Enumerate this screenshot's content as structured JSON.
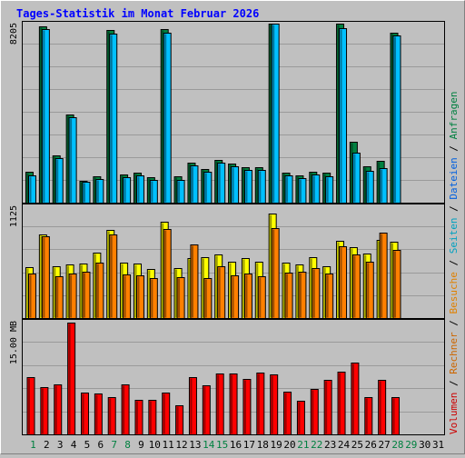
{
  "chart_data": {
    "type": "bar",
    "title": "Tages-Statistik im Monat Februar 2026",
    "categories": [
      "1",
      "2",
      "3",
      "4",
      "5",
      "6",
      "7",
      "8",
      "9",
      "10",
      "11",
      "12",
      "13",
      "14",
      "15",
      "16",
      "17",
      "18",
      "19",
      "20",
      "21",
      "22",
      "23",
      "24",
      "25",
      "26",
      "27",
      "28",
      "29",
      "30",
      "31"
    ],
    "weekend_days": [
      "1",
      "7",
      "8",
      "14",
      "15",
      "21",
      "22",
      "28",
      "29"
    ],
    "disabled_days": [
      "29",
      "30",
      "31"
    ],
    "panels": [
      {
        "id": "requests",
        "scale_label": "8205",
        "ylim": [
          0,
          8205
        ],
        "series": [
          {
            "name": "Anfragen",
            "color": "#008040",
            "values": [
              1410,
              8100,
              2180,
              4050,
              1020,
              1220,
              7900,
              1310,
              1360,
              1150,
              7950,
              1190,
              1830,
              1540,
              1960,
              1800,
              1640,
              1640,
              8400,
              1380,
              1260,
              1420,
              1360,
              8200,
              2780,
              1650,
              1900,
              7800,
              0,
              0,
              0
            ]
          },
          {
            "name": "Dateien",
            "color": "#00c0ff",
            "values": [
              1270,
              7960,
              2050,
              3900,
              940,
              1100,
              7750,
              1180,
              1230,
              1030,
              7800,
              1060,
              1690,
              1400,
              1820,
              1660,
              1510,
              1500,
              8220,
              1250,
              1140,
              1290,
              1210,
              8000,
              2300,
              1470,
              1570,
              7660,
              0,
              0,
              0
            ]
          }
        ]
      },
      {
        "id": "visits",
        "scale_label": "1125",
        "ylim": [
          0,
          1125
        ],
        "series": [
          {
            "name": "Seiten",
            "color": "#ffff00",
            "values": [
              510,
              840,
              520,
              540,
              550,
              660,
              890,
              560,
              550,
              490,
              970,
              500,
              600,
              610,
              640,
              570,
              600,
              570,
              1050,
              560,
              540,
              610,
              520,
              780,
              710,
              650,
              790,
              770,
              0,
              0,
              0
            ]
          },
          {
            "name": "Besuche",
            "color": "#ff8000",
            "values": [
              450,
              820,
              420,
              450,
              470,
              560,
              840,
              440,
              430,
              400,
              900,
              410,
              740,
              400,
              520,
              430,
              450,
              420,
              910,
              460,
              470,
              500,
              450,
              720,
              640,
              570,
              860,
              690,
              0,
              0,
              0
            ]
          }
        ]
      },
      {
        "id": "volume",
        "scale_label": "15.00 MB",
        "ylim": [
          0,
          15.0
        ],
        "series": [
          {
            "name": "Volumen",
            "color": "#ff0000",
            "values": [
              7.6,
              6.3,
              6.7,
              14.9,
              5.6,
              5.4,
              4.9,
              6.6,
              4.6,
              4.6,
              5.6,
              3.9,
              7.6,
              6.5,
              8.1,
              8.1,
              7.4,
              8.2,
              8.0,
              5.7,
              4.5,
              6.1,
              7.3,
              8.4,
              9.5,
              5.0,
              7.3,
              5.0,
              0,
              0,
              0
            ]
          }
        ]
      }
    ],
    "right_label": {
      "parts": [
        {
          "text": "Volumen",
          "color": "#cc0000"
        },
        {
          "text": " / ",
          "color": "#000000"
        },
        {
          "text": "Rechner",
          "color": "#cc6600"
        },
        {
          "text": " / ",
          "color": "#000000"
        },
        {
          "text": "Besuche",
          "color": "#e08000"
        },
        {
          "text": " / ",
          "color": "#000000"
        },
        {
          "text": "Seiten",
          "color": "#00a0c0"
        },
        {
          "text": " / ",
          "color": "#000000"
        },
        {
          "text": "Dateien",
          "color": "#0060e0"
        },
        {
          "text": " / ",
          "color": "#000000"
        },
        {
          "text": "Anfragen",
          "color": "#008040"
        }
      ]
    },
    "colors": {
      "background": "#c0c0c0",
      "title": "#0000ff",
      "gridline": "#9a9a9a",
      "weekday_label": "#000000",
      "weekend_label": "#008040",
      "disabled_label": "#000000"
    }
  }
}
